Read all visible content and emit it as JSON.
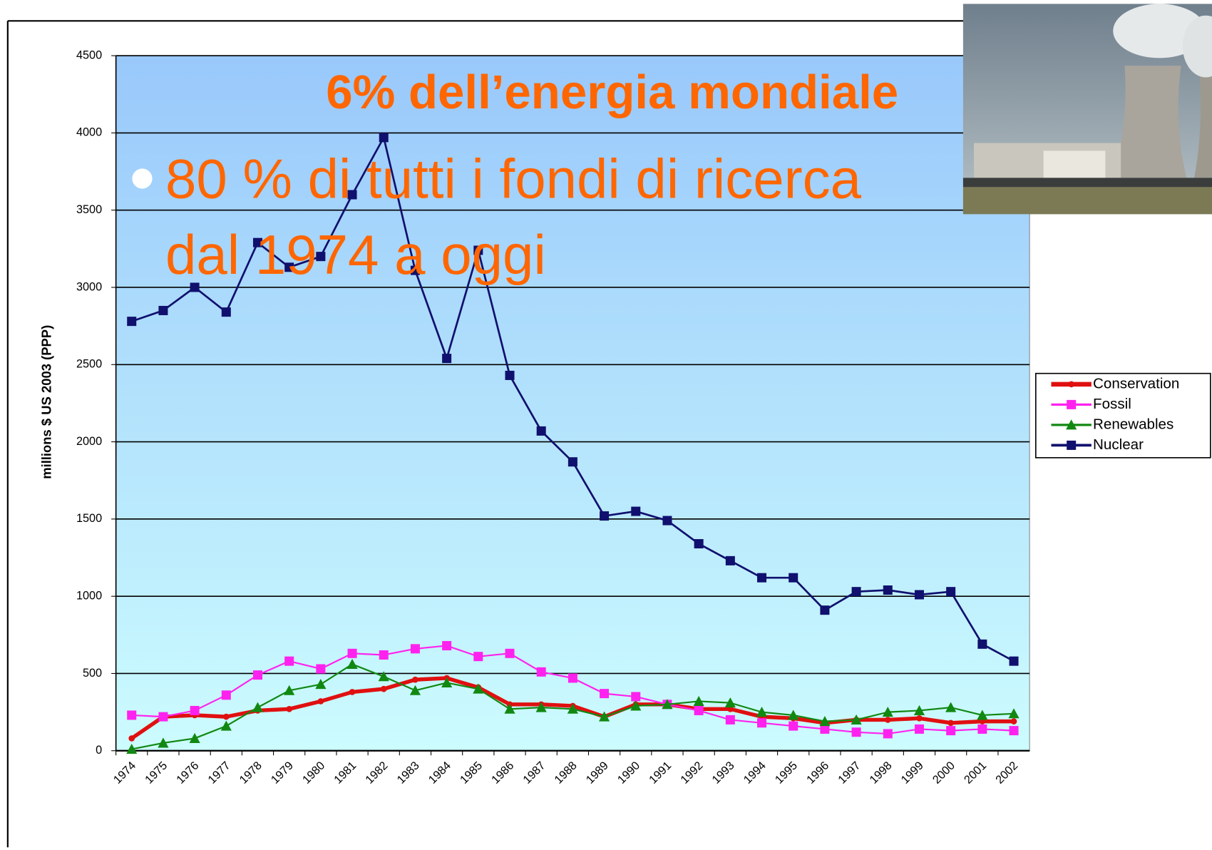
{
  "chart_data": {
    "type": "line",
    "title": "6% dell’energia mondiale",
    "bullet": [
      "80 % di tutti i fondi di ricerca",
      "dal 1974 a oggi"
    ],
    "y_label": "millions $ US 2003 (PPP)",
    "categories": [
      "1974",
      "1975",
      "1976",
      "1977",
      "1978",
      "1979",
      "1980",
      "1981",
      "1982",
      "1983",
      "1984",
      "1985",
      "1986",
      "1987",
      "1988",
      "1989",
      "1990",
      "1991",
      "1992",
      "1993",
      "1994",
      "1995",
      "1996",
      "1997",
      "1998",
      "1999",
      "2000",
      "2001",
      "2002"
    ],
    "ylim": [
      0,
      4500
    ],
    "yticks": [
      0,
      500,
      1000,
      1500,
      2000,
      2500,
      3000,
      3500,
      4000,
      4500
    ],
    "grid": true,
    "legend": "right",
    "series": [
      {
        "name": "Conservation",
        "color": "#e01010",
        "marker": "dot",
        "width": 5,
        "values": [
          80,
          220,
          230,
          220,
          260,
          270,
          320,
          380,
          400,
          460,
          470,
          410,
          300,
          300,
          290,
          220,
          300,
          300,
          270,
          270,
          220,
          210,
          180,
          200,
          200,
          210,
          180,
          190,
          190
        ]
      },
      {
        "name": "Fossil",
        "color": "#ff22ee",
        "marker": "square",
        "width": 2,
        "values": [
          230,
          220,
          260,
          360,
          490,
          580,
          530,
          630,
          620,
          660,
          680,
          610,
          630,
          510,
          470,
          370,
          350,
          300,
          260,
          200,
          180,
          160,
          140,
          120,
          110,
          140,
          130,
          140,
          130
        ]
      },
      {
        "name": "Renewables",
        "color": "#118811",
        "marker": "triangle",
        "width": 2,
        "values": [
          10,
          50,
          80,
          160,
          280,
          390,
          430,
          560,
          480,
          390,
          440,
          400,
          270,
          280,
          270,
          220,
          290,
          300,
          320,
          310,
          250,
          230,
          190,
          200,
          250,
          260,
          280,
          230,
          240
        ]
      },
      {
        "name": "Nuclear",
        "color": "#10106e",
        "marker": "square",
        "width": 2.5,
        "values": [
          2780,
          2850,
          3000,
          2840,
          3290,
          3130,
          3200,
          3600,
          3970,
          3110,
          2540,
          3240,
          2430,
          2070,
          1870,
          1520,
          1550,
          1490,
          1340,
          1230,
          1120,
          1120,
          910,
          1030,
          1040,
          1010,
          1030,
          690,
          580
        ]
      }
    ]
  }
}
